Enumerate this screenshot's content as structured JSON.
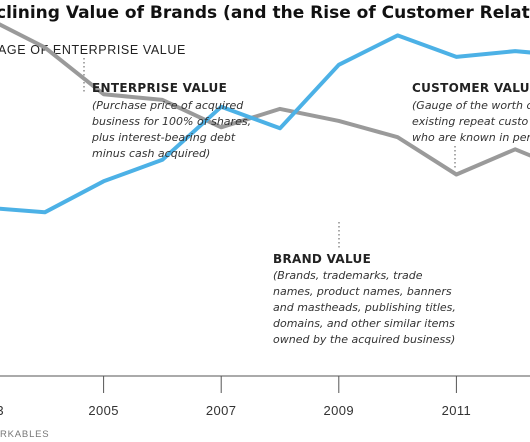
{
  "colors": {
    "customer_value": "#4cb1e6",
    "brand_value": "#9a9a9a",
    "axis": "#555555",
    "leader": "#555555"
  },
  "chart_data": {
    "type": "line",
    "title": "clining Value of Brands (and the Rise of Customer Relationsh",
    "ylabel": "AGE OF ENTERPRISE VALUE",
    "x": [
      2003,
      2004,
      2005,
      2006,
      2007,
      2008,
      2009,
      2010,
      2011,
      2012,
      2013
    ],
    "x_ticks": [
      "3",
      "2005",
      "2007",
      "2009",
      "2011"
    ],
    "series": [
      {
        "name": "CUSTOMER VALUE",
        "values": [
          23.7,
          22.8,
          28.7,
          32.8,
          42.9,
          38.8,
          50.9,
          56.5,
          52.4,
          53.5,
          52.5
        ]
      },
      {
        "name": "BRAND VALUE",
        "values": [
          59.9,
          54.2,
          45.3,
          44.2,
          39.0,
          42.5,
          40.2,
          37.1,
          30.0,
          34.8,
          30.2
        ]
      }
    ],
    "grid": false,
    "annotations": [
      {
        "series": "ENTERPRISE VALUE",
        "title": "ENTERPRISE VALUE",
        "lines": [
          "(Purchase price of acquired",
          "business for 100% of shares,",
          "plus interest-bearing debt",
          "minus cash acquired)"
        ]
      },
      {
        "series": "CUSTOMER VALUE",
        "title": "CUSTOMER VALU",
        "lines": [
          "(Gauge of the worth o",
          "existing repeat custo",
          "who are known in per"
        ]
      },
      {
        "series": "BRAND VALUE",
        "title": "BRAND VALUE",
        "lines": [
          "(Brands, trademarks, trade",
          "names, product names, banners",
          "and mastheads, publishing titles,",
          "domains, and other similar items",
          "owned by the acquired business)"
        ]
      }
    ],
    "source": "RKABLES"
  }
}
